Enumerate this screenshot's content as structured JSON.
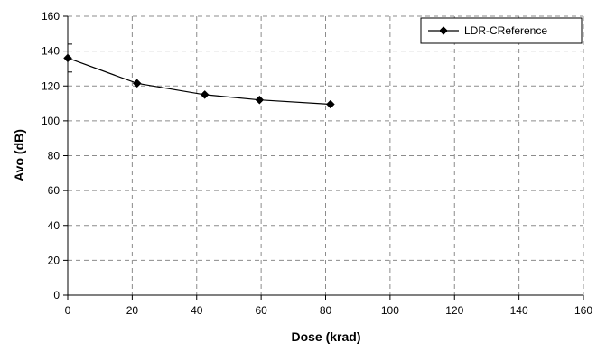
{
  "chart_data": {
    "type": "line",
    "xlabel": "Dose   (krad)",
    "ylabel": "Avo   (dB)",
    "xlim": [
      0,
      160
    ],
    "ylim": [
      0,
      160
    ],
    "xticks": [
      0,
      20,
      40,
      60,
      80,
      100,
      120,
      140,
      160
    ],
    "yticks": [
      0,
      20,
      40,
      60,
      80,
      100,
      120,
      140,
      160
    ],
    "grid": true,
    "legend_position": "top-right",
    "series": [
      {
        "name": "LDR-CReference",
        "x": [
          0,
          21.5,
          42.5,
          59.5,
          81.5
        ],
        "y": [
          136,
          121.5,
          115,
          112,
          109.5
        ],
        "marker": "diamond",
        "error_bars": [
          {
            "x": 0,
            "low": 128,
            "high": 144
          }
        ],
        "color": "#000000"
      }
    ]
  }
}
